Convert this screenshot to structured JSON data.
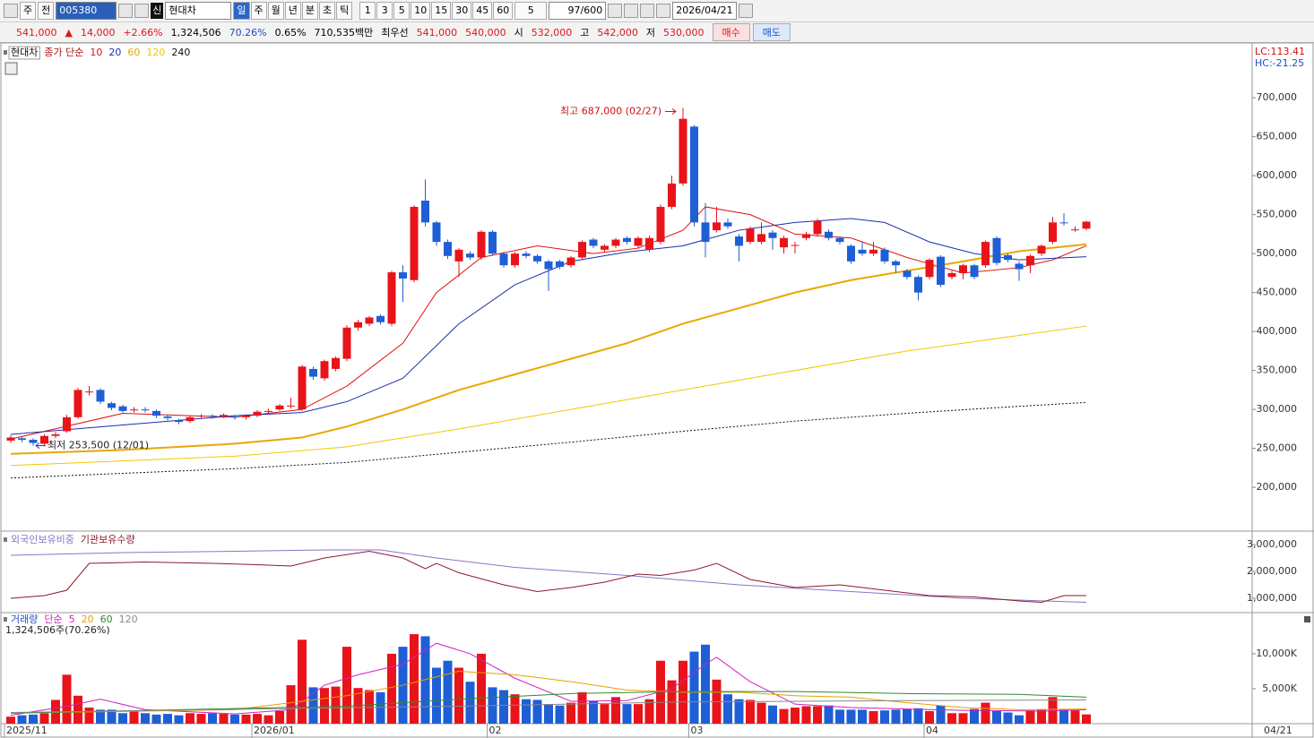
{
  "toolbar": {
    "chart_type": "주",
    "compare": "전",
    "code": "005380",
    "market_prefix": "신",
    "name": "현대차",
    "periods": [
      "일",
      "주",
      "월",
      "년",
      "분",
      "초",
      "틱"
    ],
    "intervals": [
      "1",
      "3",
      "5",
      "10",
      "15",
      "30",
      "45",
      "60"
    ],
    "unit": "5",
    "count": "97",
    "max": "/600",
    "date": "2026/04/21"
  },
  "quote": {
    "price": "541,000",
    "arrow": "▲",
    "change": "14,000",
    "rate": "+2.66%",
    "volume": "1,324,506",
    "volume_rate": "70.26%",
    "turnover": "0.65%",
    "amount": "710,535백만",
    "best_label": "최우선",
    "ask": "541,000",
    "bid": "540,000",
    "open_label": "시",
    "open": "532,000",
    "high_label": "고",
    "high": "542,000",
    "low_label": "저",
    "low": "530,000",
    "buy": "매수",
    "sell": "매도"
  },
  "chart_data": {
    "type": "candlestick",
    "name": "현대차",
    "ma_label": "종가 단순",
    "lc": "LC:113.41",
    "hc": "HC:-21.25",
    "high_label": "최고 687,000 (02/27)",
    "low_label": "최저 253,500 (12/01)",
    "last_date": "04/21",
    "categories": [
      "2025/11",
      null,
      null,
      null,
      null,
      null,
      null,
      null,
      null,
      null,
      null,
      null,
      null,
      null,
      null,
      null,
      null,
      null,
      null,
      null,
      null,
      null,
      "2026/01",
      null,
      null,
      null,
      null,
      null,
      null,
      null,
      null,
      null,
      null,
      null,
      null,
      null,
      null,
      null,
      null,
      null,
      null,
      null,
      null,
      "02",
      null,
      null,
      null,
      null,
      null,
      null,
      null,
      null,
      null,
      null,
      null,
      null,
      null,
      null,
      null,
      null,
      null,
      "03",
      null,
      null,
      null,
      null,
      null,
      null,
      null,
      null,
      null,
      null,
      null,
      null,
      null,
      null,
      null,
      null,
      null,
      null,
      null,
      null,
      "04",
      null,
      null,
      null,
      null,
      null,
      null,
      null,
      null,
      null,
      null,
      null,
      null,
      null,
      null
    ],
    "open": [
      260000,
      263000,
      261000,
      256000,
      266000,
      272000,
      290000,
      322000,
      325000,
      308000,
      304000,
      299000,
      300000,
      298000,
      291000,
      286000,
      285000,
      291000,
      292000,
      291000,
      291000,
      290000,
      292000,
      297000,
      300000,
      304000,
      300000,
      352000,
      340000,
      352000,
      365000,
      405000,
      410000,
      420000,
      410000,
      476000,
      466000,
      568000,
      540000,
      515000,
      490000,
      500000,
      495000,
      528000,
      500000,
      485000,
      500000,
      497000,
      490000,
      490000,
      485000,
      495000,
      518000,
      505000,
      510000,
      520000,
      510000,
      505000,
      515000,
      560000,
      590000,
      663000,
      540000,
      530000,
      540000,
      522000,
      515000,
      515000,
      527000,
      508000,
      510000,
      520000,
      525000,
      528000,
      520000,
      510000,
      505000,
      500000,
      505000,
      490000,
      478000,
      470000,
      470000,
      496000,
      470000,
      475000,
      485000,
      485000,
      520000,
      498000,
      487000,
      485000,
      500000,
      515000,
      540000,
      530000,
      532000
    ],
    "high": [
      267000,
      265000,
      263000,
      268000,
      271000,
      293000,
      328000,
      330000,
      327000,
      310000,
      306000,
      303000,
      303000,
      300000,
      293000,
      288000,
      292000,
      294000,
      294000,
      295000,
      293000,
      294000,
      299000,
      301000,
      307000,
      315000,
      357000,
      355000,
      364000,
      368000,
      408000,
      415000,
      420000,
      422000,
      478000,
      485000,
      562000,
      595000,
      542000,
      518000,
      507000,
      503000,
      530000,
      530000,
      502000,
      502000,
      503000,
      499000,
      492000,
      492000,
      497000,
      517000,
      520000,
      512000,
      520000,
      522000,
      522000,
      523000,
      563000,
      600000,
      687000,
      665000,
      565000,
      560000,
      545000,
      525000,
      535000,
      540000,
      530000,
      523000,
      515000,
      528000,
      545000,
      531000,
      522000,
      512000,
      515000,
      515000,
      508000,
      492000,
      480000,
      472000,
      494000,
      498000,
      478000,
      487000,
      487000,
      517000,
      522000,
      500000,
      490000,
      499000,
      512000,
      547000,
      552000,
      535000,
      542000
    ],
    "low": [
      257000,
      258000,
      253500,
      254000,
      263000,
      270000,
      288000,
      318000,
      307000,
      299000,
      296000,
      296000,
      296000,
      289000,
      286000,
      281000,
      283000,
      288000,
      288000,
      289000,
      287000,
      287000,
      290000,
      294000,
      298000,
      301000,
      298000,
      338000,
      337000,
      349000,
      362000,
      401000,
      407000,
      409000,
      407000,
      438000,
      463000,
      535000,
      510000,
      493000,
      470000,
      492000,
      492000,
      497000,
      482000,
      482000,
      494000,
      487000,
      452000,
      480000,
      482000,
      492000,
      507000,
      502000,
      507000,
      512000,
      507000,
      502000,
      512000,
      557000,
      587000,
      535000,
      495000,
      527000,
      532000,
      490000,
      512000,
      512000,
      505000,
      500000,
      500000,
      517000,
      522000,
      517000,
      512000,
      487000,
      497000,
      497000,
      487000,
      475000,
      467000,
      440000,
      467000,
      457000,
      467000,
      467000,
      467000,
      482000,
      485000,
      489000,
      465000,
      475000,
      497000,
      512000,
      536000,
      528000,
      530000
    ],
    "close": [
      264000,
      261000,
      257000,
      266000,
      268000,
      290000,
      325000,
      323000,
      310000,
      302000,
      298000,
      300000,
      299000,
      292000,
      289000,
      284000,
      290000,
      292000,
      291000,
      293000,
      290000,
      292000,
      297000,
      298000,
      305000,
      305000,
      355000,
      342000,
      362000,
      366000,
      405000,
      412000,
      418000,
      412000,
      476000,
      468000,
      560000,
      540000,
      515000,
      497000,
      505000,
      495000,
      528000,
      500000,
      485000,
      500000,
      497000,
      490000,
      480000,
      483000,
      495000,
      515000,
      510000,
      510000,
      518000,
      515000,
      520000,
      520000,
      560000,
      590000,
      673000,
      540000,
      515000,
      540000,
      535000,
      510000,
      532000,
      525000,
      520000,
      520000,
      511000,
      525000,
      542000,
      520000,
      515000,
      490000,
      500000,
      505000,
      490000,
      485000,
      470000,
      450000,
      492000,
      460000,
      475000,
      485000,
      470000,
      515000,
      488000,
      492000,
      480000,
      497000,
      510000,
      540000,
      539000,
      531000,
      541000
    ],
    "up_color": "#e8141a",
    "down_color": "#1f5fd6",
    "ylim": [
      145000,
      768000
    ],
    "yticks": [
      {
        "value": 200000,
        "label": "200,000"
      },
      {
        "value": 250000,
        "label": "250,000"
      },
      {
        "value": 300000,
        "label": "300,000"
      },
      {
        "value": 350000,
        "label": "350,000"
      },
      {
        "value": 400000,
        "label": "400,000"
      },
      {
        "value": 450000,
        "label": "450,000"
      },
      {
        "value": 500000,
        "label": "500,000"
      },
      {
        "value": 550000,
        "label": "550,000"
      },
      {
        "value": 600000,
        "label": "600,000"
      },
      {
        "value": 650000,
        "label": "650,000"
      },
      {
        "value": 700000,
        "label": "700,000"
      }
    ],
    "series": [
      {
        "name": "10",
        "color": "#e01010",
        "x": [
          0,
          10,
          20,
          26,
          30,
          35,
          38,
          42,
          47,
          52,
          56,
          60,
          62,
          66,
          70,
          75,
          80,
          85,
          90,
          93,
          96
        ],
        "values": [
          262000,
          295000,
          290000,
          300000,
          330000,
          385000,
          450000,
          495000,
          510000,
          500000,
          507000,
          530000,
          560000,
          550000,
          525000,
          520000,
          495000,
          475000,
          482000,
          492000,
          510000
        ]
      },
      {
        "name": "20",
        "color": "#1a2fb0",
        "x": [
          0,
          10,
          20,
          26,
          30,
          35,
          40,
          45,
          50,
          55,
          60,
          65,
          70,
          75,
          78,
          82,
          86,
          90,
          96
        ],
        "values": [
          268000,
          280000,
          292000,
          296000,
          310000,
          340000,
          410000,
          460000,
          490000,
          502000,
          510000,
          530000,
          540000,
          545000,
          540000,
          515000,
          500000,
          492000,
          496000
        ]
      },
      {
        "name": "60",
        "color": "#e8a800",
        "x": [
          0,
          10,
          20,
          26,
          30,
          35,
          40,
          45,
          50,
          55,
          60,
          65,
          70,
          75,
          80,
          85,
          90,
          96
        ],
        "values": [
          243000,
          248000,
          256000,
          264000,
          278000,
          300000,
          325000,
          345000,
          365000,
          385000,
          410000,
          430000,
          450000,
          466000,
          478000,
          490000,
          503000,
          512000
        ]
      },
      {
        "name": "120",
        "color": "#f0c800",
        "x": [
          0,
          10,
          20,
          30,
          40,
          50,
          60,
          70,
          80,
          90,
          96
        ],
        "values": [
          228000,
          234000,
          240000,
          252000,
          275000,
          300000,
          325000,
          350000,
          375000,
          395000,
          407000
        ]
      },
      {
        "name": "240",
        "color": "#111111",
        "dashed": true,
        "x": [
          0,
          10,
          20,
          30,
          40,
          50,
          60,
          70,
          80,
          90,
          96
        ],
        "values": [
          212000,
          218000,
          224000,
          232000,
          245000,
          258000,
          272000,
          285000,
          295000,
          304000,
          309000
        ]
      }
    ],
    "holdings": {
      "ylim": [
        500000,
        3500000
      ],
      "yticks": [
        {
          "value": 1000000,
          "label": "1,000,000"
        },
        {
          "value": 2000000,
          "label": "2,000,000"
        },
        {
          "value": 3000000,
          "label": "3,000,000"
        }
      ],
      "series": [
        {
          "name": "외국인보유비중",
          "color": "#8a74c8",
          "x": [
            0,
            5,
            10,
            20,
            28,
            33,
            38,
            45,
            55,
            65,
            75,
            85,
            96
          ],
          "values": [
            2600000,
            2650000,
            2700000,
            2750000,
            2800000,
            2800000,
            2500000,
            2150000,
            1850000,
            1500000,
            1250000,
            1000000,
            850000
          ]
        },
        {
          "name": "기관보유수량",
          "color": "#8b1a2b",
          "x": [
            0,
            3,
            5,
            7,
            12,
            18,
            22,
            25,
            28,
            32,
            35,
            37,
            38,
            40,
            44,
            47,
            50,
            53,
            56,
            58,
            61,
            63,
            66,
            70,
            74,
            78,
            82,
            86,
            90,
            92,
            94,
            96
          ],
          "values": [
            1000000,
            1100000,
            1300000,
            2300000,
            2350000,
            2300000,
            2250000,
            2200000,
            2500000,
            2750000,
            2500000,
            2100000,
            2300000,
            1950000,
            1500000,
            1250000,
            1400000,
            1600000,
            1900000,
            1850000,
            2050000,
            2300000,
            1700000,
            1400000,
            1500000,
            1300000,
            1100000,
            1050000,
            900000,
            850000,
            1100000,
            1100000
          ]
        }
      ]
    },
    "volume": {
      "title": "거래량",
      "ma_label": "단순",
      "info": "1,324,506주(70.26%)",
      "values": [
        1000,
        1200,
        1300,
        1500,
        3400,
        7000,
        4000,
        2300,
        2000,
        2000,
        1500,
        1800,
        1500,
        1300,
        1400,
        1200,
        1500,
        1400,
        1500,
        1400,
        1300,
        1300,
        1400,
        1200,
        1800,
        5500,
        12000,
        5200,
        5100,
        5300,
        11000,
        5100,
        4800,
        4500,
        10000,
        11000,
        12800,
        12500,
        8000,
        9000,
        8000,
        6000,
        10000,
        5200,
        4800,
        4200,
        3500,
        3400,
        2800,
        2600,
        3000,
        4500,
        3200,
        2800,
        3800,
        2800,
        2800,
        3500,
        9000,
        6200,
        9000,
        10300,
        11300,
        6300,
        4200,
        3500,
        3400,
        3000,
        2600,
        2100,
        2300,
        2500,
        2500,
        2600,
        2000,
        2000,
        2000,
        1800,
        1900,
        2000,
        2100,
        2200,
        1800,
        2600,
        1500,
        1500,
        2100,
        3000,
        1800,
        1600,
        1200,
        1900,
        2000,
        3800,
        2000,
        1900,
        1324.506
      ],
      "ylim": [
        0,
        15600
      ],
      "yticks": [
        {
          "value": 5000,
          "label": "5,000K"
        },
        {
          "value": 10000,
          "label": "10,000K"
        }
      ],
      "series": [
        {
          "name": "5",
          "color": "#d020c0",
          "x": [
            0,
            5,
            8,
            12,
            20,
            25,
            28,
            31,
            35,
            38,
            41,
            45,
            50,
            55,
            59,
            62,
            63,
            66,
            70,
            75,
            85,
            92,
            96
          ],
          "values": [
            1200,
            2500,
            3500,
            2000,
            1400,
            2000,
            5500,
            7000,
            8500,
            11500,
            10000,
            6500,
            3200,
            3300,
            5000,
            8500,
            9500,
            6000,
            2800,
            2300,
            1900,
            1800,
            2000
          ]
        },
        {
          "name": "20",
          "color": "#e6a000",
          "x": [
            0,
            20,
            30,
            35,
            40,
            45,
            50,
            55,
            60,
            65,
            70,
            75,
            80,
            85,
            90,
            96
          ],
          "values": [
            1500,
            2000,
            4000,
            5500,
            7500,
            7000,
            6000,
            4800,
            4500,
            4500,
            4000,
            3800,
            3000,
            2300,
            2000,
            2100
          ]
        },
        {
          "name": "60",
          "color": "#2e8b2e",
          "x": [
            0,
            30,
            40,
            50,
            60,
            70,
            80,
            90,
            96
          ],
          "values": [
            1500,
            2500,
            3500,
            4300,
            4600,
            4600,
            4300,
            4200,
            3800
          ]
        },
        {
          "name": "120",
          "color": "#888888",
          "x": [
            0,
            40,
            60,
            80,
            96
          ],
          "values": [
            1600,
            2500,
            3100,
            3300,
            3400
          ]
        }
      ]
    }
  }
}
